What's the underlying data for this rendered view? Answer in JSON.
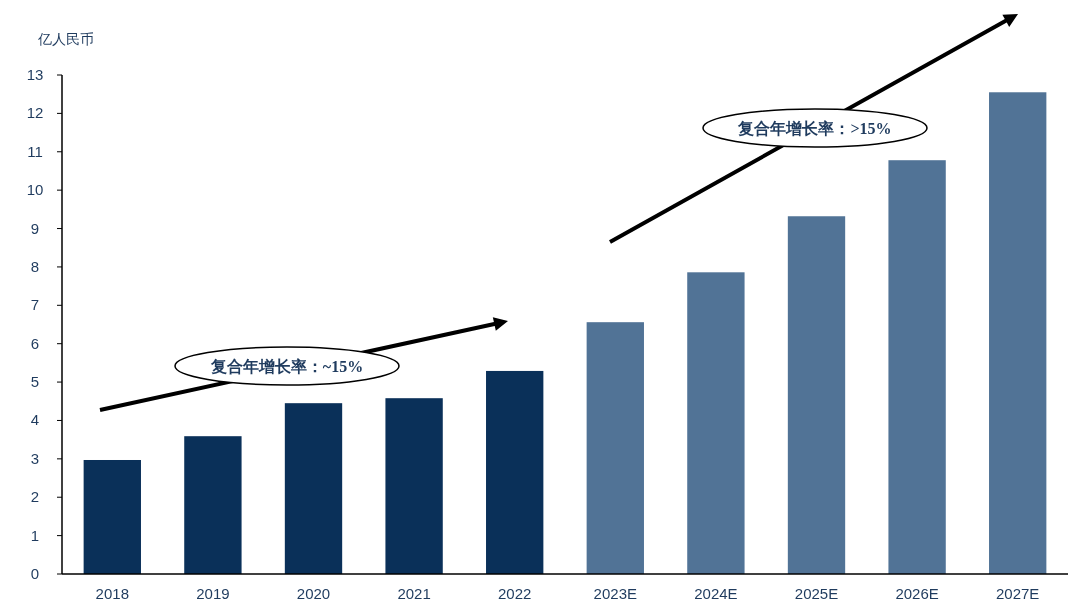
{
  "chart_data": {
    "type": "bar",
    "ylabel": "亿人民币",
    "categories": [
      "2018",
      "2019",
      "2020",
      "2021",
      "2022",
      "2023E",
      "2024E",
      "2025E",
      "2026E",
      "2027E"
    ],
    "values": [
      2.97,
      3.59,
      4.45,
      4.58,
      5.29,
      6.56,
      7.86,
      9.32,
      10.78,
      12.55
    ],
    "colors": [
      "#0a3059",
      "#0a3059",
      "#0a3059",
      "#0a3059",
      "#0a3059",
      "#517396",
      "#517396",
      "#517396",
      "#517396",
      "#517396"
    ],
    "ylim": [
      0,
      13
    ],
    "yticks": [
      0,
      1,
      2,
      3,
      4,
      5,
      6,
      7,
      8,
      9,
      10,
      11,
      12,
      13
    ],
    "annotations": [
      "复合年增长率：~15%",
      "复合年增长率：>15%"
    ],
    "grid": false
  }
}
